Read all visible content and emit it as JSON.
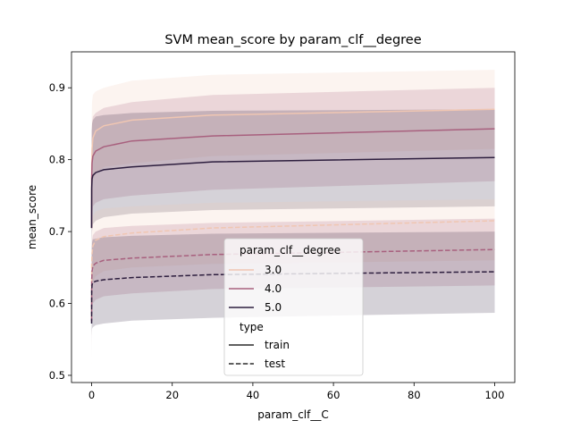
{
  "chart_data": {
    "type": "line",
    "title": "SVM mean_score by param_clf__degree",
    "xlabel": "param_clf__C",
    "ylabel": "mean_score",
    "xlim": [
      -5,
      105
    ],
    "ylim": [
      0.49,
      0.95
    ],
    "xticks": [
      "0",
      "20",
      "40",
      "60",
      "80",
      "100"
    ],
    "yticks": [
      "0.5",
      "0.6",
      "0.7",
      "0.8",
      "0.9"
    ],
    "x": [
      0.001,
      0.01,
      0.1,
      0.3,
      1,
      3,
      10,
      30,
      100
    ],
    "colors": {
      "3.0": "#f0c6b2",
      "4.0": "#a8607e",
      "5.0": "#2d1e3e"
    },
    "legend": {
      "hue_title": "param_clf__degree",
      "hue_entries": [
        "3.0",
        "4.0",
        "5.0"
      ],
      "style_title": "type",
      "style_entries": [
        "train",
        "test"
      ],
      "placement": "lower-center"
    },
    "series": [
      {
        "name": "3.0",
        "type": "train",
        "values": [
          0.705,
          0.79,
          0.815,
          0.83,
          0.84,
          0.847,
          0.855,
          0.862,
          0.87
        ],
        "lower": [
          0.6,
          0.715,
          0.75,
          0.77,
          0.78,
          0.79,
          0.795,
          0.805,
          0.815
        ],
        "upper": [
          0.81,
          0.86,
          0.88,
          0.89,
          0.895,
          0.9,
          0.91,
          0.918,
          0.925
        ]
      },
      {
        "name": "4.0",
        "type": "train",
        "values": [
          0.705,
          0.775,
          0.795,
          0.805,
          0.812,
          0.818,
          0.826,
          0.833,
          0.843
        ],
        "lower": [
          0.575,
          0.695,
          0.72,
          0.735,
          0.74,
          0.745,
          0.75,
          0.758,
          0.77
        ],
        "upper": [
          0.8,
          0.84,
          0.85,
          0.86,
          0.865,
          0.872,
          0.88,
          0.89,
          0.9
        ]
      },
      {
        "name": "5.0",
        "type": "train",
        "values": [
          0.705,
          0.76,
          0.773,
          0.778,
          0.782,
          0.786,
          0.79,
          0.797,
          0.803
        ],
        "lower": [
          0.585,
          0.68,
          0.7,
          0.71,
          0.715,
          0.72,
          0.725,
          0.73,
          0.735
        ],
        "upper": [
          0.82,
          0.84,
          0.85,
          0.855,
          0.86,
          0.862,
          0.865,
          0.868,
          0.87
        ]
      },
      {
        "name": "3.0",
        "type": "test",
        "values": [
          0.58,
          0.655,
          0.67,
          0.68,
          0.688,
          0.693,
          0.698,
          0.705,
          0.715
        ],
        "lower": [
          0.505,
          0.6,
          0.62,
          0.63,
          0.638,
          0.645,
          0.65,
          0.655,
          0.66
        ],
        "upper": [
          0.66,
          0.7,
          0.715,
          0.722,
          0.728,
          0.732,
          0.735,
          0.74,
          0.745
        ]
      },
      {
        "name": "4.0",
        "type": "test",
        "values": [
          0.575,
          0.63,
          0.645,
          0.652,
          0.656,
          0.66,
          0.663,
          0.668,
          0.675
        ],
        "lower": [
          0.53,
          0.58,
          0.595,
          0.6,
          0.605,
          0.61,
          0.614,
          0.62,
          0.625
        ],
        "upper": [
          0.64,
          0.675,
          0.688,
          0.695,
          0.7,
          0.705,
          0.708,
          0.712,
          0.718
        ]
      },
      {
        "name": "5.0",
        "type": "test",
        "values": [
          0.572,
          0.618,
          0.626,
          0.629,
          0.631,
          0.633,
          0.636,
          0.64,
          0.644
        ],
        "lower": [
          0.525,
          0.555,
          0.565,
          0.567,
          0.57,
          0.572,
          0.576,
          0.58,
          0.587
        ],
        "upper": [
          0.625,
          0.675,
          0.685,
          0.689,
          0.69,
          0.692,
          0.694,
          0.697,
          0.7
        ]
      }
    ]
  }
}
